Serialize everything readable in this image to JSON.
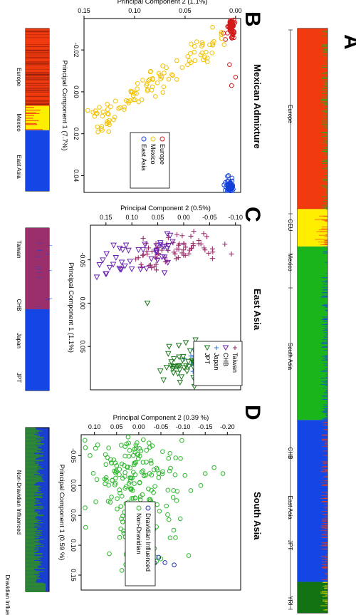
{
  "panel_letters": {
    "a": "A",
    "b": "B",
    "c": "C",
    "d": "D"
  },
  "bar_a": {
    "colors": [
      "#f23a0f",
      "#ffee00",
      "#1ab51a",
      "#1446e6",
      "#137313"
    ],
    "segments": [
      {
        "group": "Europe",
        "color": 0,
        "share": 0.309
      },
      {
        "group": "Mexico",
        "color": 1,
        "share": 0.064
      },
      {
        "group": "South Asia",
        "color": 2,
        "share": 0.297
      },
      {
        "group": "East Asia",
        "color": 3,
        "share": 0.277
      },
      {
        "group": "YRI",
        "color": 4,
        "share": 0.053
      }
    ],
    "labels": [
      "Europe",
      "CEU",
      "Mexico",
      "South Asia",
      "CHB",
      "East Asia",
      "JPT",
      "YRI"
    ]
  },
  "bar_b": {
    "segments": [
      {
        "group": "Europe",
        "color": "#f23a0f",
        "share": 0.476
      },
      {
        "group": "Mexico",
        "color": "#ffee00",
        "share": 0.15
      },
      {
        "group": "East Asia",
        "color": "#1446e6",
        "share": 0.374
      }
    ],
    "labels": [
      "Europe",
      "Mexico",
      "East Asia"
    ]
  },
  "bar_c": {
    "segments": [
      {
        "group": "Taiwan/CHB",
        "color": "#9a2f6b",
        "share": 0.5
      },
      {
        "group": "Japan/JPT",
        "color": "#1446e6",
        "share": 0.5
      }
    ],
    "labels": [
      "Taiwan",
      "CHB",
      "Japan",
      "JPT"
    ]
  },
  "bar_d": {
    "colors": [
      "#1a3fcf",
      "#2e8a2e"
    ],
    "labels": [
      "Non-Dravidian Influenced",
      "Dravidian Influenced"
    ]
  },
  "chart_data": [
    {
      "id": "B",
      "type": "scatter",
      "title": "Mexican Admixture",
      "xlabel": "Principal Component 1 (7.7%)",
      "ylabel": "Principal Component 2 (1.1%)",
      "x_ticks": [
        "-0.02",
        "0.00",
        "0.02",
        "0.04"
      ],
      "y_ticks": [
        "0.15",
        "0.10",
        "0.05",
        "0.00"
      ],
      "xlim": [
        -0.035,
        0.048
      ],
      "ylim": [
        -0.005,
        0.15
      ],
      "legend": [
        "Europe",
        "Mexico",
        "East Asia"
      ],
      "series": [
        {
          "name": "Europe",
          "color": "#d11a1a",
          "cluster": {
            "x": -0.032,
            "y": 0.004,
            "sx": 0.0025,
            "sy": 0.0015,
            "n": 80
          },
          "extra": [
            [
              -0.013,
              0.006
            ],
            [
              -0.007,
              0.0
            ],
            [
              -0.003,
              0.004
            ],
            [
              -0.028,
              0.012
            ],
            [
              -0.025,
              0.01
            ]
          ]
        },
        {
          "name": "Mexico",
          "color": "#f2c200",
          "line": {
            "x0": -0.026,
            "y0": 0.015,
            "x1": 0.016,
            "y1": 0.14,
            "n": 110,
            "spread": 0.0035
          }
        },
        {
          "name": "East Asia",
          "color": "#1440d8",
          "cluster": {
            "x": 0.046,
            "y": 0.006,
            "sx": 0.002,
            "sy": 0.002,
            "n": 80
          },
          "extra": [
            [
              0.04,
              0.007
            ]
          ]
        }
      ]
    },
    {
      "id": "C",
      "type": "scatter",
      "title": "East Asia",
      "xlabel": "Principal Component 1 (1.1%)",
      "ylabel": "Principal Component 2 (0.5%)",
      "x_ticks": [
        "-0.05",
        "0.00",
        "0.05"
      ],
      "y_ticks": [
        "-0.10",
        "-0.05",
        "0.00",
        "0.05",
        "0.10",
        "0.15"
      ],
      "xlim": [
        -0.09,
        0.1
      ],
      "ylim": [
        -0.11,
        0.18
      ],
      "legend": [
        "Taiwan",
        "CHB",
        "Japan",
        "JPT"
      ],
      "series": [
        {
          "name": "Taiwan",
          "color": "#9a2f6b",
          "line": {
            "x0": -0.07,
            "y0": -0.07,
            "x1": -0.05,
            "y1": 0.09,
            "n": 70,
            "spread": 0.009
          }
        },
        {
          "name": "CHB",
          "color": "#6a22b0",
          "line": {
            "x0": -0.065,
            "y0": 0.02,
            "x1": -0.045,
            "y1": 0.16,
            "n": 45,
            "spread": 0.01
          }
        },
        {
          "name": "Japan",
          "color": "#3a7fd6",
          "cluster": {
            "x": 0.07,
            "y": -0.03,
            "sx": 0.01,
            "sy": 0.015,
            "n": 45
          }
        },
        {
          "name": "JPT",
          "color": "#1d7a1d",
          "cluster": {
            "x": 0.072,
            "y": 0.0,
            "sx": 0.012,
            "sy": 0.02,
            "n": 45
          },
          "extra": [
            [
              0.0,
              0.07
            ]
          ]
        }
      ]
    },
    {
      "id": "D",
      "type": "scatter",
      "title": "South Asia",
      "xlabel": "Principal Component 1  (0.59 %)",
      "ylabel": "Principal Component 2  (0.39 %)",
      "x_ticks": [
        "-0.05",
        "0.00",
        "0.05",
        "0.10",
        "0.15"
      ],
      "y_ticks": [
        "-0.20",
        "-0.15",
        "-0.10",
        "-0.05",
        "0.00",
        "0.05",
        "0.10"
      ],
      "xlim": [
        -0.085,
        0.175
      ],
      "ylim": [
        -0.23,
        0.13
      ],
      "legend": [
        "Dravidian Influenced",
        "Non-Dravidian"
      ],
      "series": [
        {
          "name": "Non-Dravidian",
          "color": "#2fb82f",
          "cluster": {
            "x": -0.02,
            "y": 0.01,
            "sx": 0.04,
            "sy": 0.05,
            "n": 160
          },
          "extra_cluster": {
            "x": 0.08,
            "y": 0.0,
            "sx": 0.03,
            "sy": 0.03,
            "n": 60
          },
          "extra": [
            [
              -0.02,
              -0.19
            ],
            [
              -0.03,
              -0.17
            ],
            [
              -0.02,
              -0.15
            ],
            [
              0.0,
              -0.14
            ],
            [
              -0.05,
              0.11
            ],
            [
              0.07,
              0.12
            ],
            [
              0.15,
              0.0
            ]
          ]
        },
        {
          "name": "Dravidian Influenced",
          "color": "#1a2fb0",
          "cluster": {
            "x": 0.13,
            "y": -0.02,
            "sx": 0.012,
            "sy": 0.03,
            "n": 22
          }
        }
      ]
    }
  ]
}
